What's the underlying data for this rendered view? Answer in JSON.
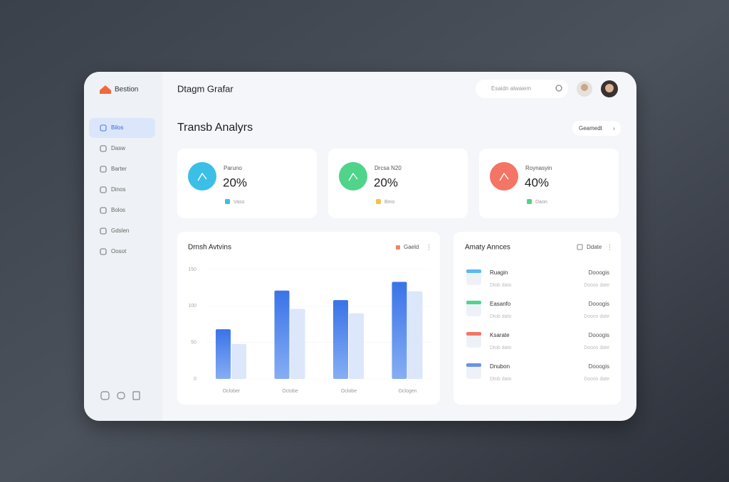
{
  "header": {
    "brand": "Bestion",
    "app_title": "Dtagm Grafar",
    "search_placeholder": "Esaidn alwaiem"
  },
  "page_title": "Transb Analyrs",
  "action_button": "Geamedt",
  "sidebar": {
    "items": [
      "Bilos",
      "Dasw",
      "Barter",
      "Dinos",
      "Bolos",
      "Gdslen",
      "Oosot"
    ]
  },
  "stat_cards": [
    {
      "label": "Paruno",
      "value": "20%",
      "legend": "Vaso",
      "color": "#3bbfe6",
      "legend_color": "#3bbfe6"
    },
    {
      "label": "Drcsa N20",
      "value": "20%",
      "legend": "Bmo",
      "color": "#4fd48a",
      "legend_color": "#f5c04a"
    },
    {
      "label": "Roynasyin",
      "value": "40%",
      "legend": "Daon",
      "color": "#f47565",
      "legend_color": "#4fd48a"
    }
  ],
  "chart": {
    "type": "bar",
    "title": "Drnsh Avtvins",
    "categories": [
      "Oclober",
      "Octobe",
      "Oclobe",
      "Oclogen"
    ],
    "series": [
      {
        "name": "Gaeld",
        "color": "#3a73e8",
        "values": [
          68,
          121,
          108,
          133
        ]
      },
      {
        "color": "#dce7fb",
        "values": [
          48,
          96,
          90,
          120
        ]
      }
    ],
    "legend_color": "#f0845c",
    "ylim": [
      0,
      150
    ],
    "yticks": [
      0,
      50,
      100,
      150
    ]
  },
  "activity": {
    "title": "Amaty Annces",
    "filter": "Ddate",
    "rows": [
      {
        "title": "Ruagin",
        "subtitle": "Dtob dato",
        "right": "Dooogis",
        "right_sub": "Dooos date",
        "color": "#5cb8f0"
      },
      {
        "title": "Easanfo",
        "subtitle": "Dtob dato",
        "right": "Dooogis",
        "right_sub": "Dooos date",
        "color": "#4fd48a"
      },
      {
        "title": "Ksarate",
        "subtitle": "Dtob dato",
        "right": "Dooogis",
        "right_sub": "Dooos date",
        "color": "#f47565"
      },
      {
        "title": "Dnubon",
        "subtitle": "Dtob dato",
        "right": "Dooogis",
        "right_sub": "Dooos date",
        "color": "#6a93e8"
      }
    ]
  }
}
